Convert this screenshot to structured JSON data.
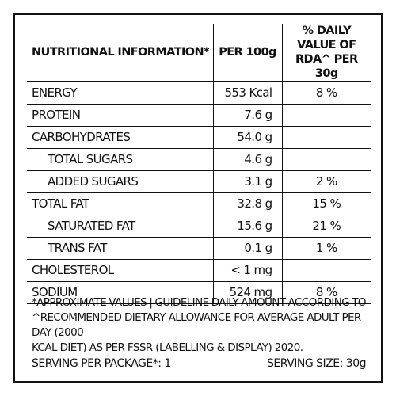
{
  "table": {
    "headers": {
      "info": "NUTRITIONAL INFORMATION*",
      "per100": "PER 100g",
      "rda": "% DAILY VALUE OF RDA^ PER 30g"
    },
    "rows": [
      {
        "name": "ENERGY",
        "value": "553 Kcal",
        "rda": "8 %",
        "sub": false
      },
      {
        "name": "PROTEIN",
        "value": "7.6 g",
        "rda": "",
        "sub": false
      },
      {
        "name": "CARBOHYDRATES",
        "value": "54.0 g",
        "rda": "",
        "sub": false
      },
      {
        "name": "TOTAL SUGARS",
        "value": "4.6 g",
        "rda": "",
        "sub": true
      },
      {
        "name": "ADDED SUGARS",
        "value": "3.1 g",
        "rda": "2 %",
        "sub": true
      },
      {
        "name": "TOTAL FAT",
        "value": "32.8 g",
        "rda": "15 %",
        "sub": false
      },
      {
        "name": "SATURATED FAT",
        "value": "15.6 g",
        "rda": "21 %",
        "sub": true
      },
      {
        "name": "TRANS FAT",
        "value": "0.1 g",
        "rda": "1 %",
        "sub": true
      },
      {
        "name": "CHOLESTEROL",
        "value": "< 1 mg",
        "rda": "",
        "sub": false
      },
      {
        "name": "SODIUM",
        "value": "524 mg",
        "rda": "8 %",
        "sub": false
      }
    ]
  },
  "footnote": {
    "line1_words": [
      "*APPROXIMATE",
      "VALUES",
      "|",
      "GUIDELINE",
      "DAILY",
      "AMOUNT",
      "ACCORDING",
      "TO"
    ],
    "line2": "^RECOMMENDED DIETARY ALLOWANCE FOR AVERAGE ADULT PER DAY (2000",
    "line3": "KCAL DIET) AS PER FSSR (LABELLING & DISPLAY) 2020."
  },
  "serving": {
    "per_package": "SERVING PER PACKAGE*: 1",
    "size": "SERVING SIZE: 30g"
  }
}
